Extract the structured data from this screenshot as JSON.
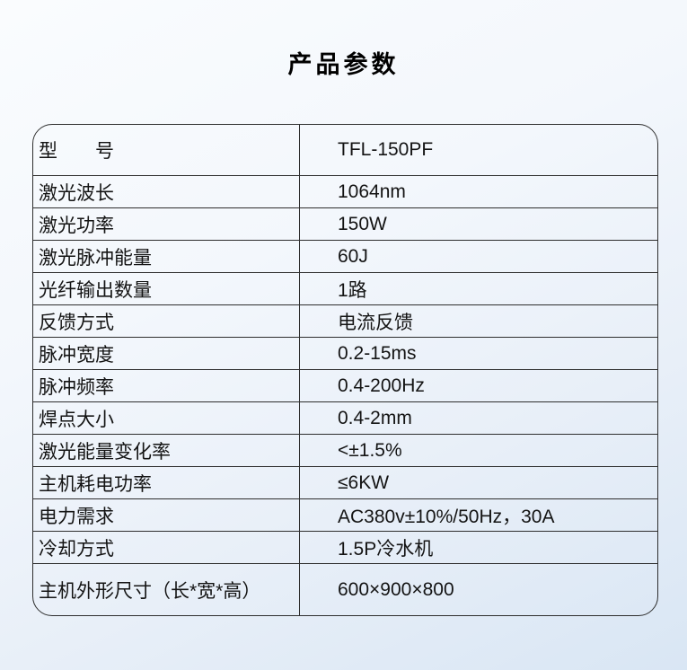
{
  "page": {
    "title": "产品参数"
  },
  "colors": {
    "background_top": "#fafcfe",
    "background_bottom": "#d9e6f4",
    "border": "#2e2e2e",
    "text": "#141414"
  },
  "table": {
    "rows": [
      {
        "label": "型　　号",
        "value": "TFL-150PF"
      },
      {
        "label": "激光波长",
        "value": "1064nm"
      },
      {
        "label": "激光功率",
        "value": "150W"
      },
      {
        "label": "激光脉冲能量",
        "value": "60J"
      },
      {
        "label": "光纤输出数量",
        "value": "1路"
      },
      {
        "label": "反馈方式",
        "value": "电流反馈"
      },
      {
        "label": "脉冲宽度",
        "value": "0.2-15ms"
      },
      {
        "label": "脉冲频率",
        "value": "0.4-200Hz"
      },
      {
        "label": "焊点大小",
        "value": "0.4-2mm"
      },
      {
        "label": "激光能量变化率",
        "value": "<±1.5%"
      },
      {
        "label": "主机耗电功率",
        "value": "≤6KW"
      },
      {
        "label": "电力需求",
        "value": "AC380v±10%/50Hz，30A"
      },
      {
        "label": "冷却方式",
        "value": "1.5P冷水机"
      },
      {
        "label": "主机外形尺寸（长*宽*高）",
        "value": "600×900×800"
      }
    ]
  }
}
